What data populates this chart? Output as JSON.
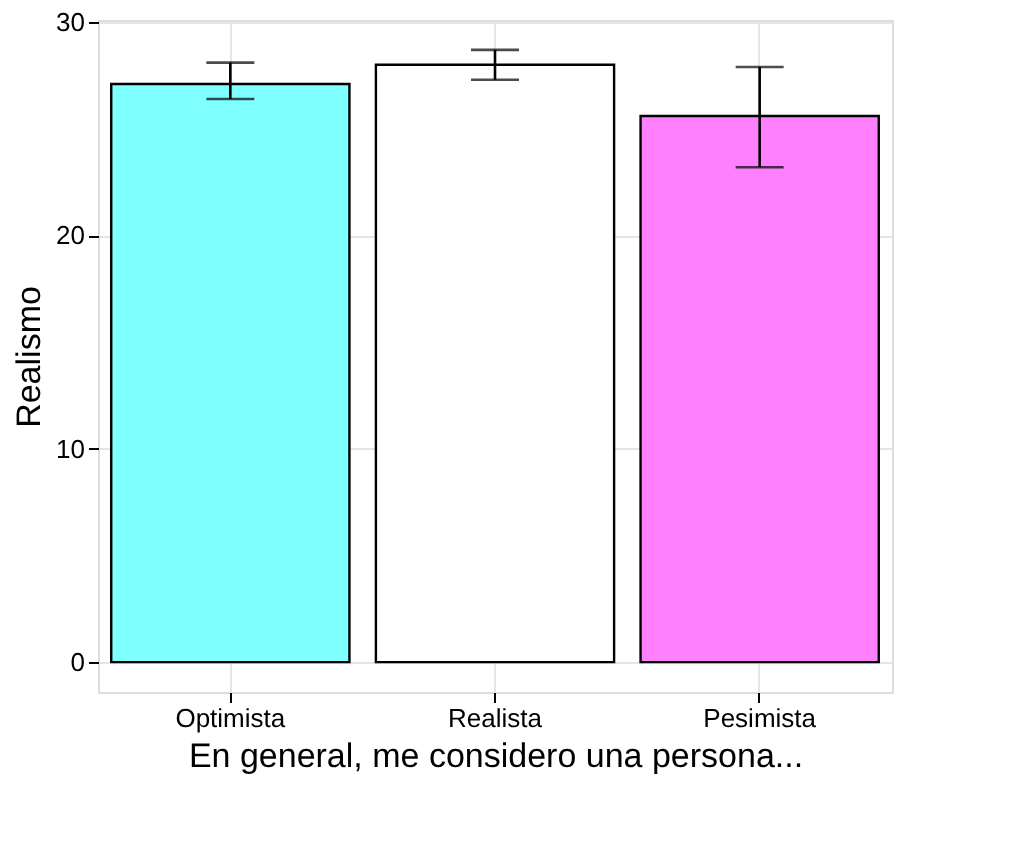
{
  "chart_data": {
    "type": "bar",
    "xlabel": "En general, me considero una persona...",
    "ylabel": "Realismo",
    "categories": [
      "Optimista",
      "Realista",
      "Pesimista"
    ],
    "values": [
      27.1,
      28.0,
      25.6
    ],
    "colors": [
      "#80ffff",
      "#ffffff",
      "#ff80ff"
    ],
    "errors": [
      [
        26.4,
        28.1
      ],
      [
        27.3,
        28.7
      ],
      [
        23.2,
        27.9
      ]
    ],
    "ylim": [
      -1.4,
      30.1
    ],
    "yticks": [
      0,
      10,
      20,
      30
    ],
    "grid": true
  }
}
